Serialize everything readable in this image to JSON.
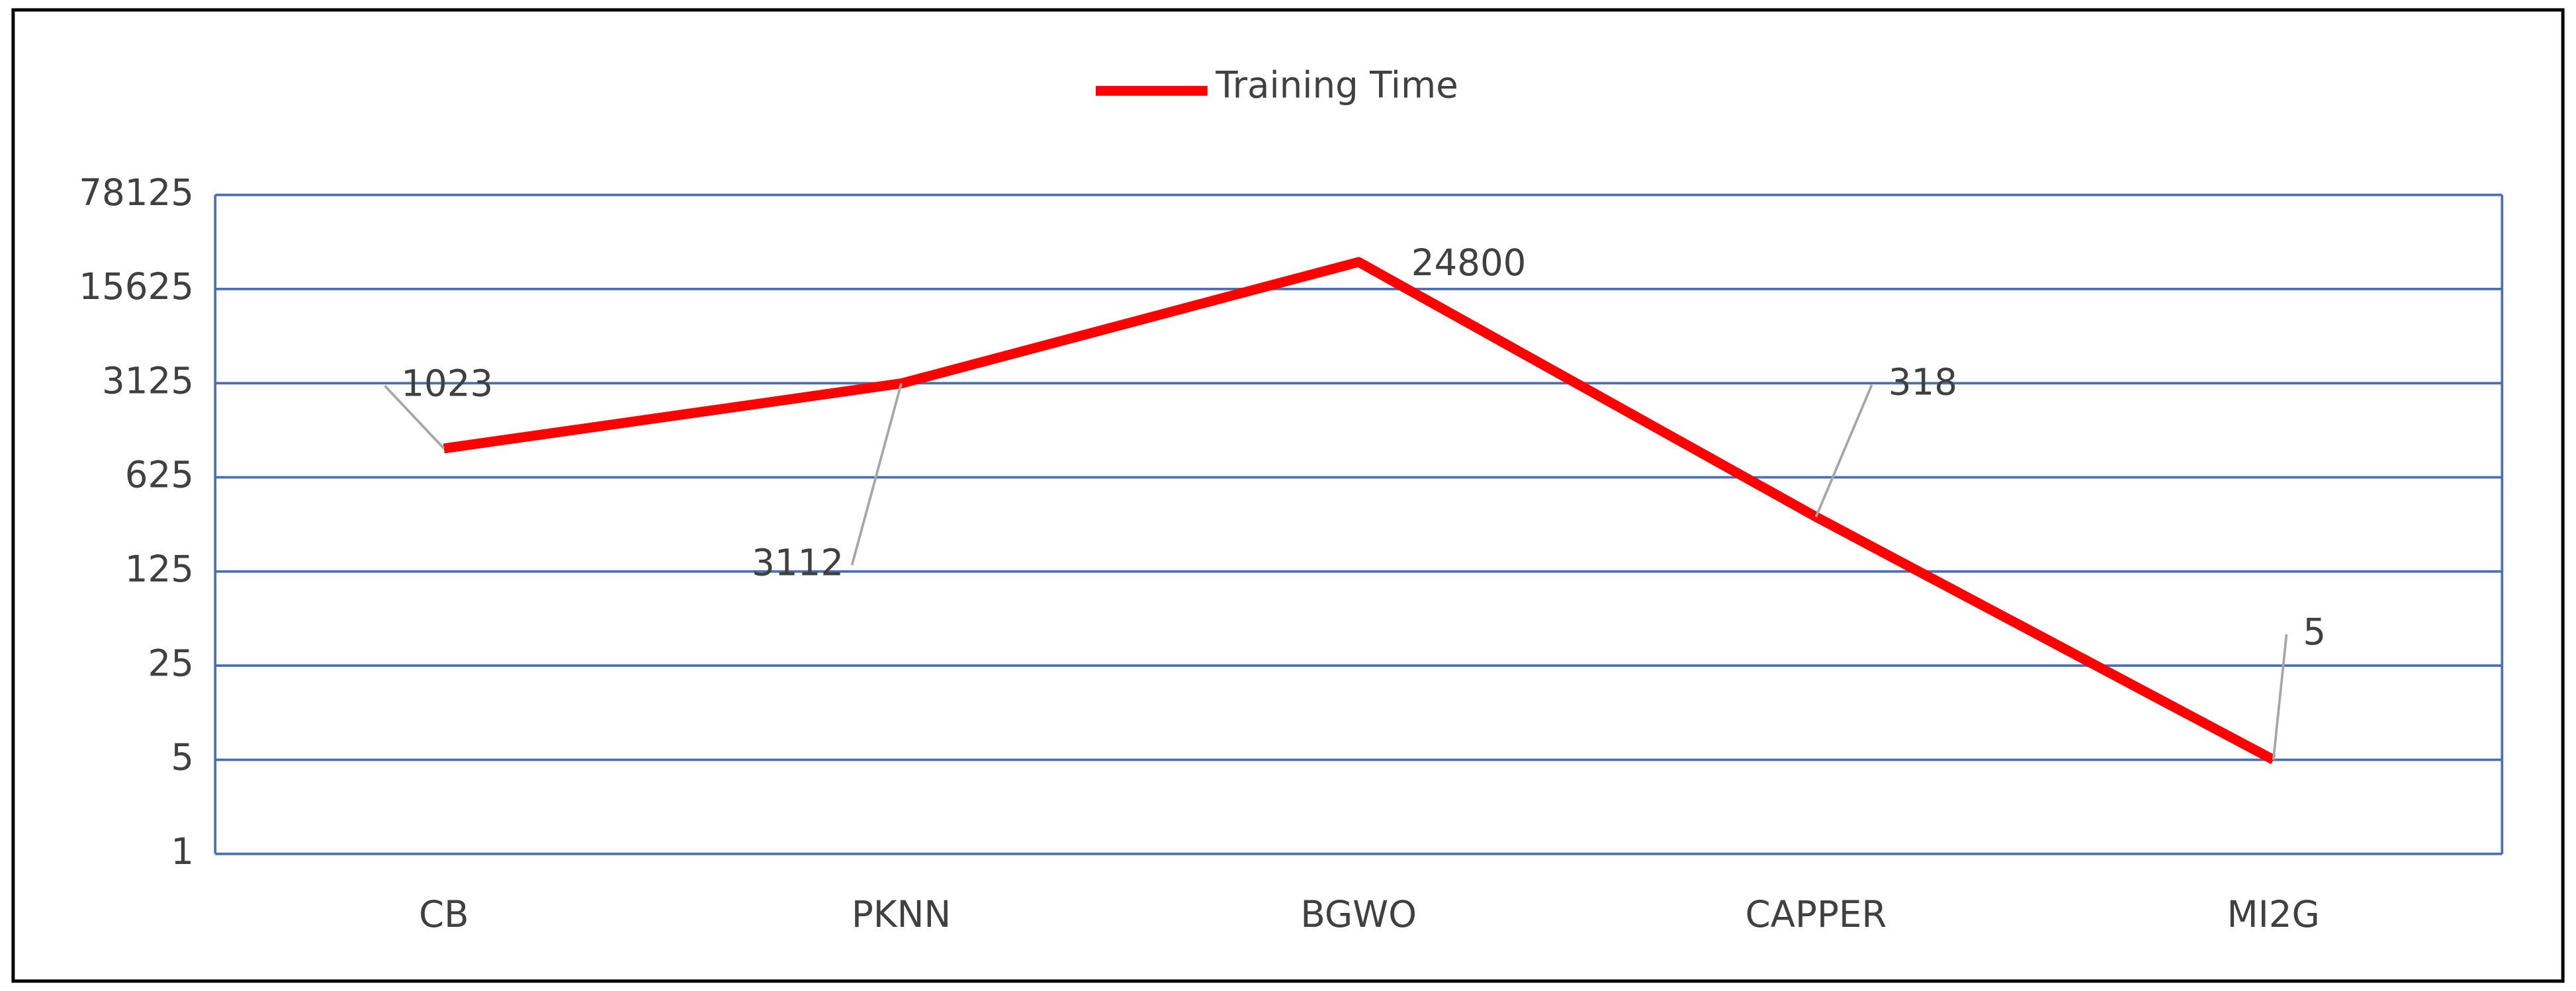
{
  "chart_data": {
    "type": "line",
    "categories": [
      "CB",
      "PKNN",
      "BGWO",
      "CAPPER",
      "MI2G"
    ],
    "series": [
      {
        "name": "Training Time",
        "color": "#ff0000",
        "values": [
          1023,
          3112,
          24800,
          318,
          5
        ]
      }
    ],
    "log_scale": true,
    "log_base": 5,
    "ylim": [
      1,
      78125
    ],
    "yticks": [
      1,
      5,
      25,
      125,
      625,
      3125,
      15625,
      78125
    ],
    "grid": true,
    "legend": "top"
  }
}
